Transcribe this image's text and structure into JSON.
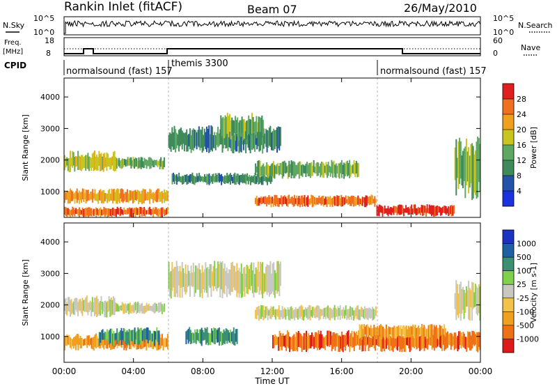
{
  "header": {
    "station": "Rankin Inlet (fitACF)",
    "beam": "Beam 07",
    "date": "26/May/2010"
  },
  "noise_panel": {
    "left_label": "N.Sky",
    "right_label": "N.Search",
    "left_ticks": [
      "10^5",
      "10^0"
    ],
    "right_ticks": [
      "10^5",
      "10^0"
    ]
  },
  "freq_panel": {
    "left_label_line1": "Freq.",
    "left_label_line2": "[MHz]",
    "right_label": "Nave",
    "left_ticks": [
      "18",
      "8"
    ],
    "right_ticks": [
      "60",
      "0"
    ]
  },
  "cpid": {
    "label": "CPID",
    "segments": [
      {
        "text": "normalsound (fast) 157",
        "start_hour": 0
      },
      {
        "text": "themis 3300",
        "start_hour": 6
      },
      {
        "text": "normalsound (fast) 157",
        "start_hour": 18
      }
    ]
  },
  "chart_data": [
    {
      "type": "heatmap",
      "quantity": "Power",
      "xlabel": "Time UT",
      "ylabel": "Slant Range [km]",
      "xlim_hours": [
        0,
        24
      ],
      "ylim_km": [
        180,
        4600
      ],
      "ytick_values": [
        1000,
        2000,
        3000,
        4000
      ],
      "colorbar": {
        "label": "Power [dB]",
        "ticks": [
          "4",
          "8",
          "12",
          "16",
          "20",
          "24",
          "28"
        ],
        "colors": [
          "#1a33dd",
          "#2352a8",
          "#3f8a5a",
          "#5fa864",
          "#c9c41e",
          "#f0a020",
          "#f07020",
          "#e02020"
        ]
      },
      "regions": [
        {
          "t": [
            0.0,
            3.0
          ],
          "r": [
            1600,
            2300
          ],
          "level": 4
        },
        {
          "t": [
            3.0,
            5.8
          ],
          "r": [
            1700,
            2100
          ],
          "level": 3
        },
        {
          "t": [
            0.0,
            6.0
          ],
          "r": [
            600,
            1100
          ],
          "level": 5
        },
        {
          "t": [
            0.0,
            6.0
          ],
          "r": [
            180,
            520
          ],
          "level": 6
        },
        {
          "t": [
            6.0,
            12.5
          ],
          "r": [
            2200,
            3100
          ],
          "level": 2
        },
        {
          "t": [
            9.0,
            11.5
          ],
          "r": [
            2600,
            3500
          ],
          "level": 3
        },
        {
          "t": [
            6.2,
            12.0
          ],
          "r": [
            1200,
            1600
          ],
          "level": 2
        },
        {
          "t": [
            11.0,
            17.0
          ],
          "r": [
            1400,
            2000
          ],
          "level": 3
        },
        {
          "t": [
            11.0,
            18.0
          ],
          "r": [
            500,
            900
          ],
          "level": 6
        },
        {
          "t": [
            18.0,
            22.5
          ],
          "r": [
            200,
            600
          ],
          "level": 7
        },
        {
          "t": [
            22.5,
            24.0
          ],
          "r": [
            700,
            2800
          ],
          "level": 3
        }
      ]
    },
    {
      "type": "heatmap",
      "quantity": "Velocity",
      "xlabel": "Time UT",
      "ylabel": "Slant Range [km]",
      "xlim_hours": [
        0,
        24
      ],
      "ylim_km": [
        180,
        4600
      ],
      "ytick_values": [
        1000,
        2000,
        3000,
        4000
      ],
      "xtick_labels": [
        "00:00",
        "04:00",
        "08:00",
        "12:00",
        "16:00",
        "20:00",
        "00:00"
      ],
      "colorbar": {
        "label": "Velocity [m s-1]",
        "ticks": [
          "-1000",
          "-500",
          "-100",
          "-25",
          "25",
          "100",
          "500",
          "1000"
        ],
        "colors": [
          "#dd1a1a",
          "#f07018",
          "#f0a020",
          "#f2c24a",
          "#c8c8c0",
          "#7fd04a",
          "#3a9070",
          "#2060a0",
          "#1a33c0"
        ]
      },
      "regions": [
        {
          "t": [
            0.0,
            3.0
          ],
          "r": [
            1600,
            2300
          ],
          "level": 4
        },
        {
          "t": [
            3.0,
            5.8
          ],
          "r": [
            1700,
            2100
          ],
          "level": 4
        },
        {
          "t": [
            0.0,
            6.0
          ],
          "r": [
            550,
            1100
          ],
          "level": 2
        },
        {
          "t": [
            2.0,
            5.5
          ],
          "r": [
            700,
            1300
          ],
          "level": 6
        },
        {
          "t": [
            7.0,
            10.0
          ],
          "r": [
            700,
            1300
          ],
          "level": 6
        },
        {
          "t": [
            6.0,
            12.5
          ],
          "r": [
            2200,
            3400
          ],
          "level": 4
        },
        {
          "t": [
            11.0,
            18.0
          ],
          "r": [
            1500,
            2000
          ],
          "level": 4
        },
        {
          "t": [
            12.0,
            24.0
          ],
          "r": [
            500,
            1200
          ],
          "level": 1
        },
        {
          "t": [
            17.0,
            22.0
          ],
          "r": [
            900,
            1400
          ],
          "level": 2
        },
        {
          "t": [
            22.5,
            24.0
          ],
          "r": [
            1500,
            2800
          ],
          "level": 4
        }
      ]
    }
  ],
  "colors": {
    "background": "#ffffff",
    "axes": "#000000"
  }
}
